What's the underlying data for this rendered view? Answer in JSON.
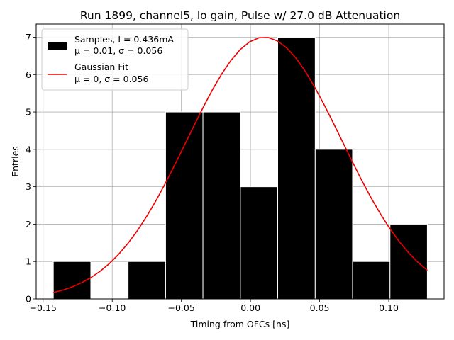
{
  "chart_data": {
    "type": "bar",
    "title": "Run 1899, channel5, lo gain, Pulse w/ 27.0 dB Attenuation",
    "xlabel": "Timing from OFCs [ns]",
    "ylabel": "Entries",
    "xlim": [
      -0.155,
      0.14
    ],
    "ylim": [
      0,
      7.35
    ],
    "grid": true,
    "legend_position": "upper left",
    "xticks": [
      -0.15,
      -0.1,
      -0.05,
      0.0,
      0.05,
      0.1
    ],
    "xtick_labels": [
      "−0.15",
      "−0.10",
      "−0.05",
      "0.00",
      "0.05",
      "0.10"
    ],
    "yticks": [
      0,
      1,
      2,
      3,
      4,
      5,
      6,
      7
    ],
    "ytick_labels": [
      "0",
      "1",
      "2",
      "3",
      "4",
      "5",
      "6",
      "7"
    ],
    "histogram": {
      "name": "Samples",
      "color": "#000000",
      "edge_color": "#ffffff",
      "bin_edges": [
        -0.1426,
        -0.1155,
        -0.0885,
        -0.0614,
        -0.0344,
        -0.0073,
        0.0197,
        0.0468,
        0.0738,
        0.1009,
        0.1279
      ],
      "counts": [
        1,
        0,
        1,
        5,
        5,
        3,
        7,
        4,
        1,
        2
      ]
    },
    "fit": {
      "name": "Gaussian Fit",
      "color": "#ee0000",
      "mu": 0.01,
      "sigma": 0.056,
      "amplitude": 7.0,
      "x_range": [
        -0.1426,
        0.1279
      ]
    },
    "legend": [
      {
        "kind": "bar",
        "line1": "Samples, I = 0.436mA",
        "line2_math": "μ = 0.01, σ = 0.056"
      },
      {
        "kind": "line",
        "line1": "Gaussian Fit",
        "line2_math": "μ = 0, σ = 0.056"
      }
    ]
  }
}
